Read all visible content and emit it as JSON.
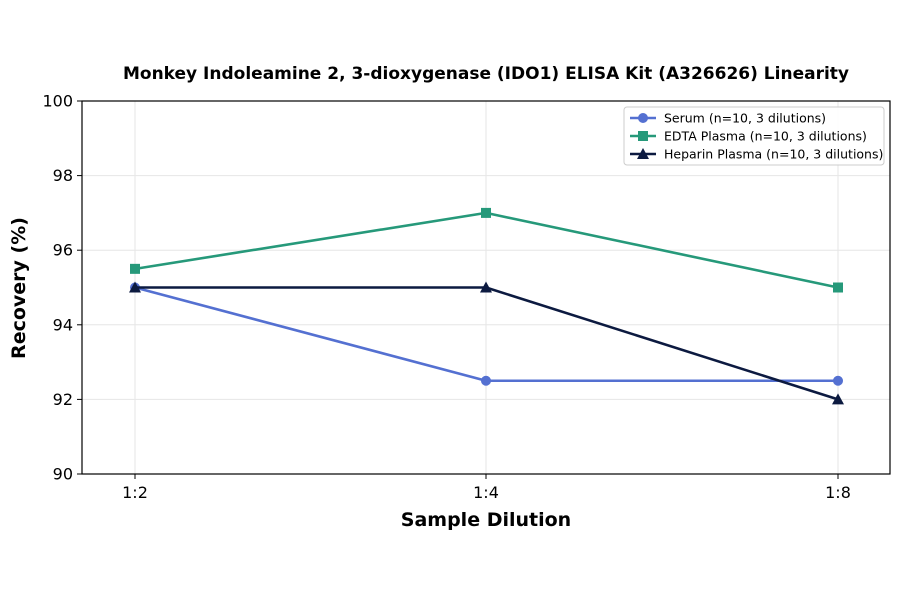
{
  "chart_data": {
    "type": "line",
    "title": "Monkey Indoleamine 2, 3-dioxygenase (IDO1) ELISA Kit (A326626) Linearity",
    "xlabel": "Sample Dilution",
    "ylabel": "Recovery (%)",
    "categories": [
      "1:2",
      "1:4",
      "1:8"
    ],
    "ylim": [
      90,
      100
    ],
    "yticks": [
      90,
      92,
      94,
      96,
      98,
      100
    ],
    "grid": true,
    "legend_position": "top-right",
    "series": [
      {
        "name": "Serum (n=10, 3 dilutions)",
        "values": [
          95.0,
          92.5,
          92.5
        ],
        "color": "#5470d1",
        "marker": "circle"
      },
      {
        "name": "EDTA Plasma (n=10, 3 dilutions)",
        "values": [
          95.5,
          97.0,
          95.0
        ],
        "color": "#26997a",
        "marker": "square"
      },
      {
        "name": "Heparin Plasma (n=10, 3 dilutions)",
        "values": [
          95.0,
          95.0,
          92.0
        ],
        "color": "#0c1a40",
        "marker": "triangle"
      }
    ]
  }
}
